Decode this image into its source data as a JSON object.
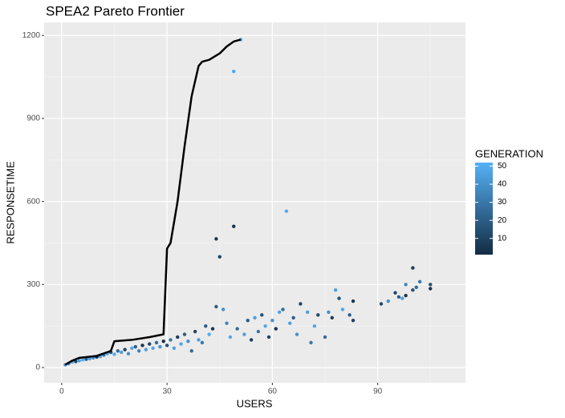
{
  "chart_data": {
    "type": "scatter",
    "title": "SPEA2 Pareto Frontier",
    "x_label": "USERS",
    "y_label": "RESPONSETIME",
    "xlim": [
      -5,
      115
    ],
    "ylim": [
      -55,
      1247
    ],
    "xticks": [
      0,
      30,
      60,
      90
    ],
    "yticks": [
      0,
      300,
      600,
      900,
      1200
    ],
    "x_minor_ticks": [
      15,
      45,
      75,
      105
    ],
    "y_minor_ticks": [
      150,
      450,
      750,
      1050
    ],
    "grid": true,
    "x": [
      1,
      2,
      3,
      4,
      5,
      6,
      7,
      8,
      9,
      10,
      11,
      12,
      13,
      14,
      15,
      16,
      17,
      18,
      19,
      20,
      21,
      22,
      23,
      24,
      25,
      26,
      27,
      28,
      29,
      30,
      31,
      32,
      33,
      34,
      35,
      36,
      37,
      38,
      39,
      40,
      41,
      42,
      43,
      44,
      44,
      45,
      46,
      47,
      48,
      49,
      49,
      50,
      51,
      52,
      53,
      54,
      55,
      56,
      57,
      58,
      59,
      60,
      61,
      62,
      63,
      64,
      65,
      66,
      67,
      68,
      70,
      71,
      72,
      73,
      75,
      76,
      77,
      78,
      79,
      80,
      82,
      83,
      83,
      91,
      93,
      95,
      96,
      98,
      100,
      100,
      101,
      98,
      105,
      105,
      102,
      97
    ],
    "y": [
      10,
      15,
      20,
      22,
      25,
      28,
      30,
      32,
      35,
      38,
      40,
      45,
      50,
      55,
      48,
      60,
      55,
      65,
      50,
      70,
      75,
      60,
      80,
      65,
      85,
      70,
      90,
      75,
      95,
      80,
      100,
      70,
      110,
      85,
      120,
      95,
      60,
      130,
      100,
      90,
      150,
      120,
      140,
      220,
      465,
      400,
      210,
      160,
      110,
      1070,
      510,
      140,
      1185,
      120,
      170,
      100,
      180,
      130,
      190,
      150,
      110,
      170,
      140,
      200,
      210,
      565,
      160,
      180,
      120,
      230,
      200,
      90,
      150,
      190,
      110,
      200,
      180,
      280,
      250,
      210,
      190,
      240,
      170,
      230,
      240,
      270,
      255,
      300,
      360,
      280,
      290,
      260,
      300,
      285,
      310,
      250
    ],
    "color_name": "GENERATION",
    "color_values": [
      45,
      30,
      48,
      10,
      45,
      50,
      20,
      45,
      40,
      5,
      45,
      30,
      48,
      15,
      50,
      25,
      45,
      10,
      40,
      48,
      20,
      35,
      5,
      45,
      12,
      48,
      25,
      40,
      3,
      15,
      30,
      45,
      8,
      48,
      20,
      40,
      25,
      10,
      45,
      30,
      20,
      50,
      5,
      20,
      5,
      10,
      40,
      35,
      48,
      48,
      3,
      25,
      50,
      45,
      20,
      8,
      45,
      30,
      15,
      48,
      10,
      40,
      5,
      48,
      25,
      50,
      45,
      20,
      40,
      10,
      45,
      30,
      48,
      12,
      25,
      40,
      8,
      45,
      15,
      48,
      20,
      5,
      10,
      12,
      40,
      10,
      20,
      35,
      8,
      15,
      25,
      5,
      15,
      5,
      30,
      45
    ],
    "color_low": "#132B43",
    "color_high": "#56B1F7",
    "clim": [
      1,
      52
    ],
    "color_ticks": [
      10,
      20,
      30,
      40,
      50
    ],
    "frontier": {
      "color": "#000000",
      "x": [
        1,
        3,
        5,
        10,
        14,
        15,
        20,
        25,
        29,
        30,
        31,
        33,
        35,
        37,
        39,
        40,
        42,
        45,
        47,
        49,
        51
      ],
      "y": [
        10,
        25,
        35,
        42,
        60,
        95,
        100,
        110,
        120,
        430,
        450,
        600,
        800,
        980,
        1090,
        1105,
        1112,
        1135,
        1160,
        1178,
        1185
      ]
    }
  }
}
